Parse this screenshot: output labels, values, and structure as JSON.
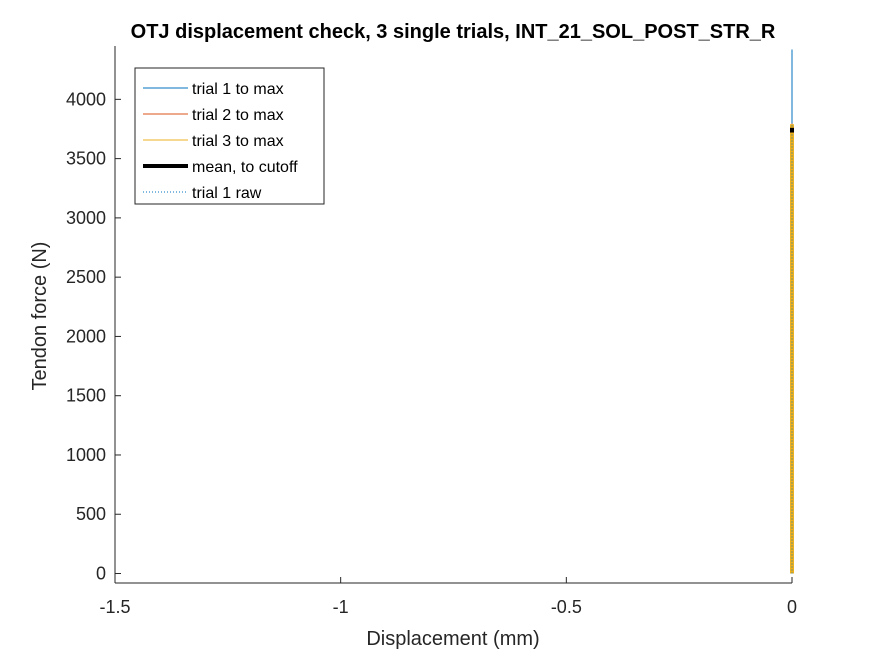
{
  "chart_data": {
    "type": "line",
    "title": "OTJ displacement check, 3 single trials, INT_21_SOL_POST_STR_R",
    "xlabel": "Displacement (mm)",
    "ylabel": "Tendon force (N)",
    "xlim": [
      -1.5,
      0.0
    ],
    "ylim": [
      -80,
      4450
    ],
    "xticks": [
      -1.5,
      -1,
      -0.5,
      0
    ],
    "xtick_labels": [
      "-1.5",
      "-1",
      "-0.5",
      "0"
    ],
    "yticks": [
      0,
      500,
      1000,
      1500,
      2000,
      2500,
      3000,
      3500,
      4000
    ],
    "ytick_labels": [
      "0",
      "500",
      "1000",
      "1500",
      "2000",
      "2500",
      "3000",
      "3500",
      "4000"
    ],
    "grid": false,
    "legend_location": "top-left",
    "series": [
      {
        "name": "trial 1 to max",
        "color": "#0072BD",
        "style": "solid",
        "x": [
          0,
          0
        ],
        "y": [
          0,
          4420
        ]
      },
      {
        "name": "trial 2 to max",
        "color": "#D95319",
        "style": "solid",
        "x": [
          0,
          0
        ],
        "y": [
          0,
          3800
        ]
      },
      {
        "name": "trial 3 to max",
        "color": "#EDB120",
        "style": "solid-thick",
        "x": [
          0,
          0
        ],
        "y": [
          0,
          3790
        ]
      },
      {
        "name": "mean, to cutoff",
        "color": "#000000",
        "style": "thick",
        "x": [
          0,
          0
        ],
        "y": [
          3720,
          3760
        ]
      },
      {
        "name": "trial 1 raw",
        "color": "#0072BD",
        "style": "dotted",
        "x": [
          0,
          0
        ],
        "y": [
          0,
          3800
        ]
      }
    ]
  }
}
